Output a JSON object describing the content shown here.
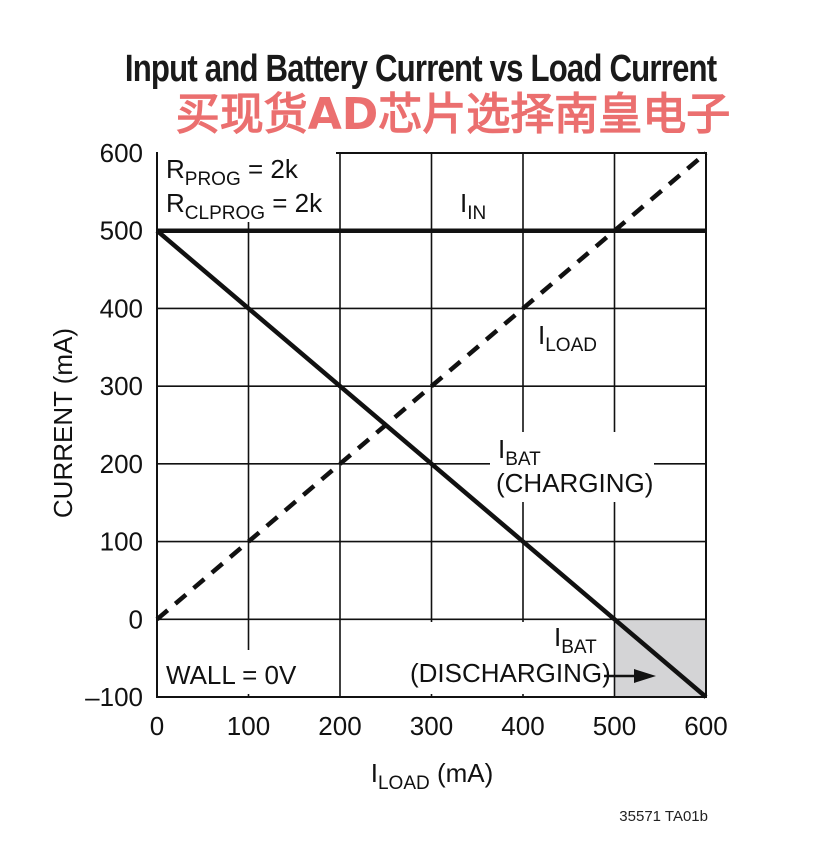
{
  "title": "Input and Battery Current vs Load Current",
  "watermark": "买现货AD芯片选择南皇电子",
  "part_code": "35571 TA01b",
  "colors": {
    "line": "#111111",
    "grid": "#111111",
    "shade": "#d4d4d6",
    "watermark": "#e64646"
  },
  "chart_data": {
    "type": "line",
    "xlabel": {
      "main": "I",
      "sub": "LOAD",
      "unit": " (mA)"
    },
    "ylabel": "CURRENT (mA)",
    "xlim": [
      0,
      600
    ],
    "ylim": [
      -100,
      600
    ],
    "xticks": [
      0,
      100,
      200,
      300,
      400,
      500,
      600
    ],
    "yticks": [
      -100,
      0,
      100,
      200,
      300,
      400,
      500,
      600
    ],
    "ytick_labels": [
      "–100",
      "0",
      "100",
      "200",
      "300",
      "400",
      "500",
      "600"
    ],
    "grid": true,
    "shaded_region": {
      "x": [
        500,
        600
      ],
      "y": [
        -100,
        0
      ]
    },
    "series": [
      {
        "name": "IIN",
        "style": "solid",
        "x": [
          0,
          600
        ],
        "y": [
          500,
          500
        ]
      },
      {
        "name": "ILOAD",
        "style": "dashed",
        "x": [
          0,
          600
        ],
        "y": [
          0,
          600
        ]
      },
      {
        "name": "IBAT",
        "style": "solid",
        "x": [
          0,
          600
        ],
        "y": [
          500,
          -100
        ]
      }
    ],
    "annotations": {
      "rprog": {
        "main": "R",
        "sub": "PROG",
        "rest": " = 2k"
      },
      "rclprog": {
        "main": "R",
        "sub": "CLPROG",
        "rest": " = 2k"
      },
      "iin": {
        "main": "I",
        "sub": "IN"
      },
      "iload": {
        "main": "I",
        "sub": "LOAD"
      },
      "ibat_charging": {
        "main": "I",
        "sub": "BAT",
        "line2": "(CHARGING)"
      },
      "ibat_discharging": {
        "main": "I",
        "sub": "BAT",
        "line2": "(DISCHARGING)"
      },
      "wall": "WALL = 0V"
    }
  }
}
